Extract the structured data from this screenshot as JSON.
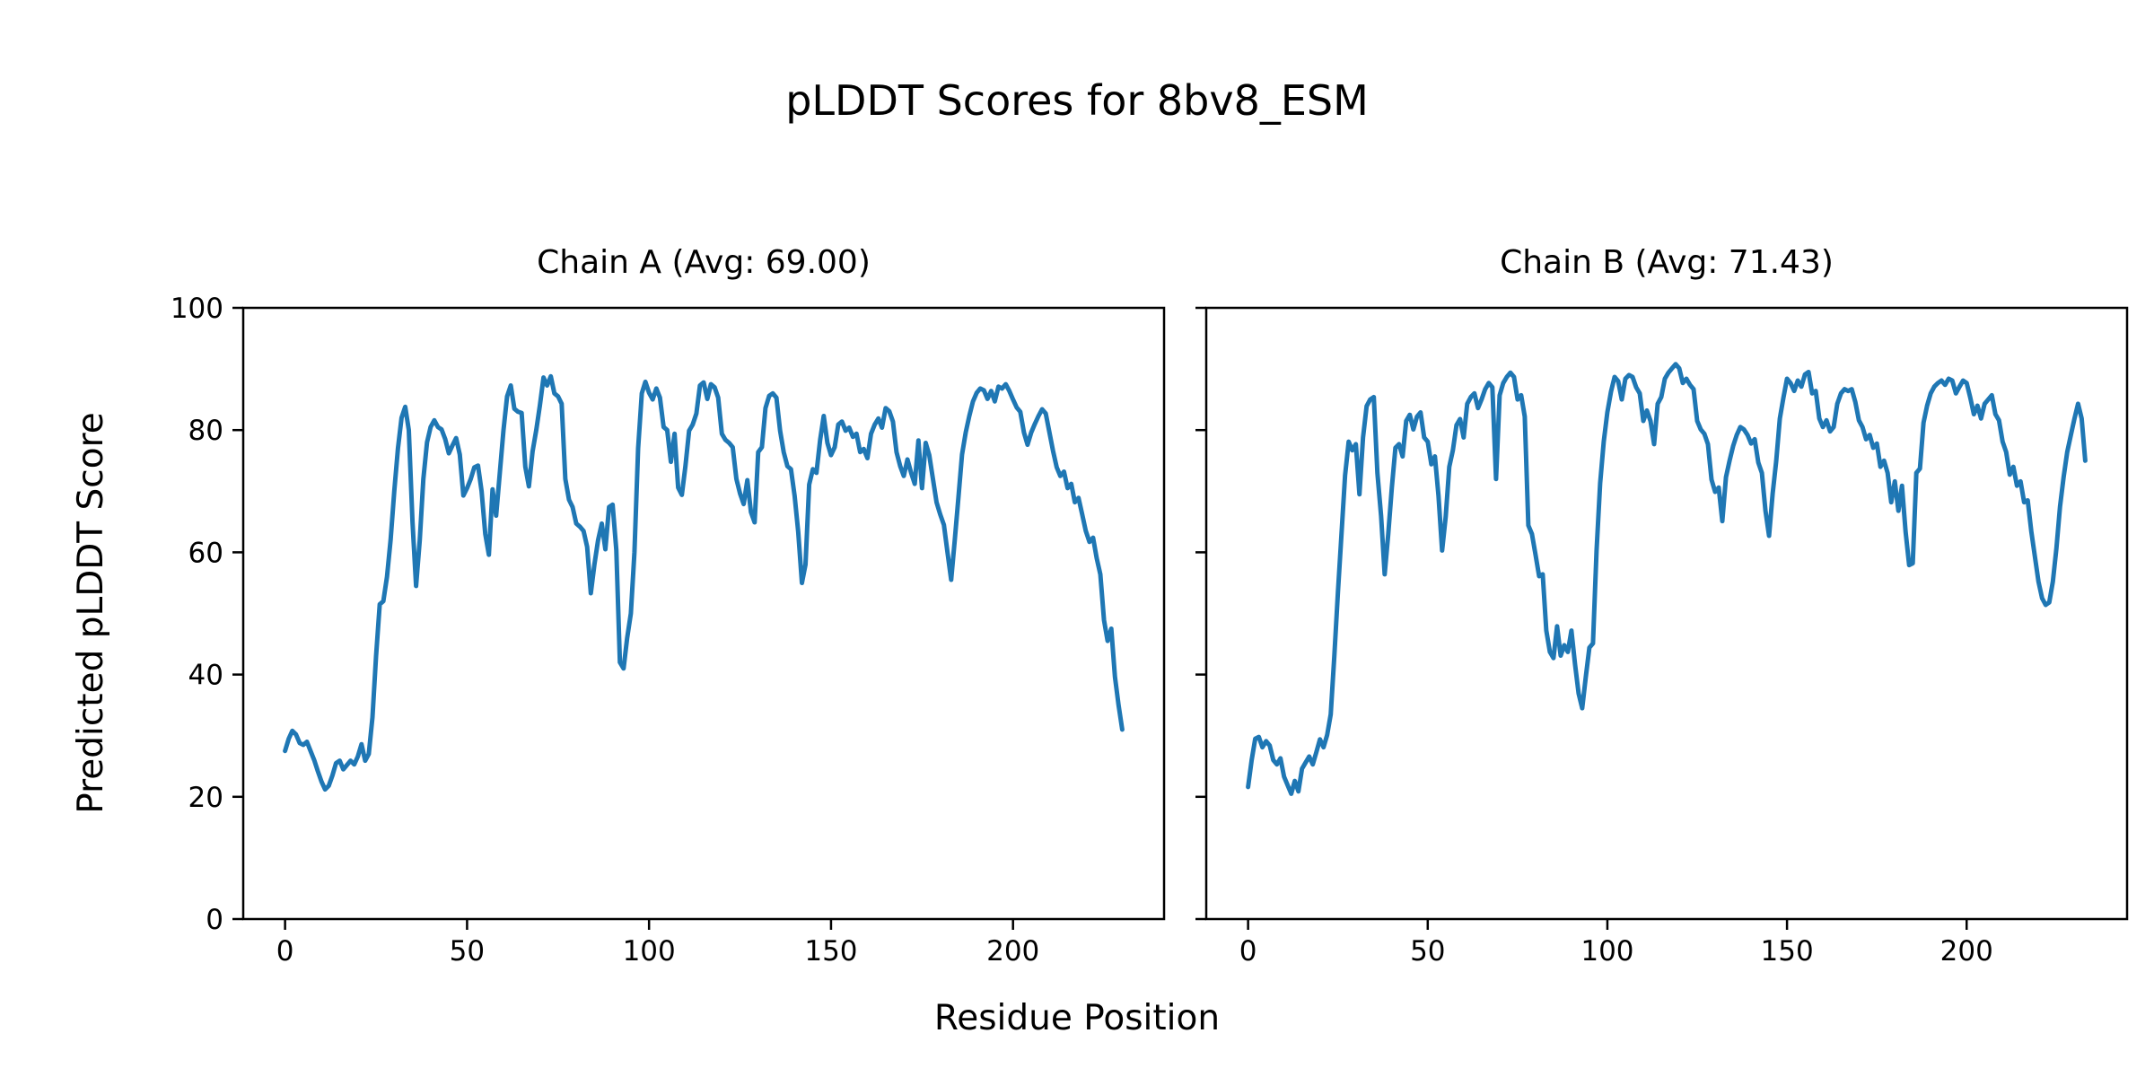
{
  "chart_data": {
    "type": "line",
    "suptitle": "pLDDT Scores for 8bv8_ESM",
    "xlabel": "Residue Position",
    "ylabel": "Predicted pLDDT Score",
    "line_color": "#1f77b4",
    "axis_color": "#000000",
    "text_color": "#000000",
    "background_color": "#ffffff",
    "ylim": [
      0,
      100
    ],
    "yticks": [
      0,
      20,
      40,
      60,
      80,
      100
    ],
    "xticks": [
      0,
      50,
      100,
      150,
      200
    ],
    "grid": false,
    "legend": "none",
    "subplots": [
      {
        "title": "Chain A (Avg: 69.00)",
        "avg": 69.0,
        "x_start": 0,
        "values": [
          27.5,
          29.5,
          30.8,
          30.2,
          28.8,
          28.5,
          29,
          27.5,
          26,
          24.2,
          22.5,
          21.2,
          21.8,
          23.5,
          25.5,
          25.9,
          24.5,
          25.2,
          25.9,
          25.3,
          26.6,
          28.6,
          25.9,
          27,
          33,
          43,
          51.5,
          52,
          56,
          62,
          70,
          77,
          82,
          83.8,
          80,
          65,
          54.5,
          62,
          72,
          78,
          80.5,
          81.6,
          80.5,
          80.1,
          78.5,
          76.2,
          77.5,
          78.7,
          76,
          69.3,
          70.5,
          72,
          73.9,
          74.2,
          70,
          63,
          59.6,
          70.3,
          66,
          73,
          80,
          85.5,
          87.3,
          83.5,
          83,
          82.8,
          74,
          70.8,
          76.5,
          80,
          84,
          88.6,
          87.3,
          88.8,
          86,
          85.5,
          84.3,
          72,
          68.6,
          67.4,
          64.7,
          64.2,
          63.5,
          60.9,
          53.3,
          58,
          62,
          64.7,
          60.5,
          67.4,
          67.8,
          60.4,
          42,
          41,
          46,
          50,
          60,
          77,
          86,
          87.9,
          86.1,
          85,
          86.8,
          85.3,
          80.5,
          80,
          74.8,
          79.4,
          70.6,
          69.4,
          74.1,
          79.9,
          80.9,
          82.7,
          87.3,
          87.8,
          85.1,
          87.5,
          87,
          85.3,
          79.4,
          78.4,
          77.9,
          77.2,
          72,
          69.6,
          67.9,
          71.8,
          66.6,
          64.9,
          76.4,
          77.2,
          83.6,
          85.6,
          86,
          85.3,
          79.9,
          76.4,
          74.1,
          73.6,
          69.2,
          63.3,
          55,
          58,
          71.1,
          73.6,
          73,
          78.4,
          82.3,
          77.9,
          75.9,
          77.2,
          80.9,
          81.4,
          79.9,
          80.4,
          78.9,
          79.4,
          76.4,
          76.9,
          75.4,
          79.4,
          80.9,
          81.9,
          80.4,
          83.6,
          83.1,
          81.4,
          76.4,
          74.1,
          72.5,
          75.2,
          73,
          71.2,
          78.3,
          70.5,
          77.9,
          75.9,
          72,
          68.2,
          66.2,
          64.5,
          60,
          55.5,
          62,
          69,
          76,
          79.6,
          82.3,
          84.7,
          86.1,
          86.8,
          86.5,
          85.1,
          86.4,
          84.7,
          87.1,
          86.8,
          87.5,
          86.4,
          85,
          83.7,
          83,
          79.6,
          77.6,
          79.6,
          81,
          82.3,
          83.4,
          82.7,
          79.6,
          76.6,
          73.9,
          72.5,
          73.2,
          70.5,
          71.2,
          68.2,
          68.9,
          66.2,
          63.5,
          61.7,
          62.4,
          59,
          56.4,
          48.9,
          45.5,
          47.5,
          39.6,
          35,
          31
        ]
      },
      {
        "title": "Chain B (Avg: 71.43)",
        "avg": 71.43,
        "x_start": 0,
        "values": [
          21.6,
          26,
          29.5,
          29.8,
          28.1,
          29.1,
          28.4,
          26,
          25.3,
          26.3,
          23.3,
          21.9,
          20.5,
          22.6,
          20.9,
          24.6,
          25.6,
          26.6,
          25.3,
          27.3,
          29.4,
          28.1,
          30.1,
          33.5,
          43,
          53.4,
          63,
          72.6,
          78.1,
          76.7,
          77.7,
          69.5,
          78.8,
          83.9,
          85,
          85.4,
          73,
          66,
          56.4,
          63,
          70.6,
          77.1,
          77.7,
          75.7,
          81.5,
          82.5,
          80.1,
          82.2,
          82.9,
          78.8,
          78.1,
          74.4,
          75.7,
          69.2,
          60.3,
          65.8,
          74,
          76.7,
          80.8,
          81.8,
          78.8,
          84.3,
          85.4,
          86,
          83.6,
          85,
          86.7,
          87.7,
          87,
          72,
          85.7,
          87.7,
          88.7,
          89.4,
          88.7,
          85,
          85.7,
          82.2,
          64.4,
          63,
          59.6,
          56.1,
          56.4,
          47.2,
          43.7,
          42.7,
          47.9,
          43.1,
          44.8,
          43.7,
          47.2,
          41.7,
          36.9,
          34.5,
          39.6,
          44.4,
          45.1,
          60.3,
          71.3,
          78.1,
          82.9,
          86.3,
          88.7,
          88,
          85,
          88.4,
          89,
          88.7,
          87,
          86,
          81.5,
          83.2,
          81.5,
          77.7,
          84.3,
          85.4,
          88.4,
          89.4,
          90.1,
          90.8,
          90.1,
          87.7,
          88.4,
          87.4,
          86.7,
          81.5,
          80.1,
          79.4,
          77.7,
          71.9,
          69.9,
          70.6,
          65.1,
          72.3,
          75,
          77.4,
          79.2,
          80.5,
          80.1,
          79.2,
          77.8,
          78.5,
          74.7,
          73,
          66.8,
          62.7,
          69.6,
          75,
          81.9,
          85.3,
          88.4,
          87.7,
          86.4,
          88.1,
          87.1,
          89.1,
          89.5,
          86,
          86.4,
          81.9,
          80.5,
          81.6,
          79.8,
          80.5,
          84.3,
          86,
          86.7,
          86.4,
          86.7,
          84.6,
          81.6,
          80.5,
          78.5,
          79.2,
          77.1,
          77.8,
          74,
          75,
          73,
          68.2,
          71.6,
          66.8,
          70.9,
          63.4,
          57.9,
          58.2,
          73,
          73.7,
          81.2,
          84,
          86,
          87.1,
          87.7,
          88.1,
          87.4,
          88.4,
          88.1,
          86,
          87.1,
          88.1,
          87.7,
          85.3,
          82.6,
          84,
          81.9,
          84.3,
          85,
          85.7,
          82.6,
          81.6,
          78.1,
          76.4,
          72.7,
          74,
          70.9,
          71.6,
          68.2,
          68.5,
          63.4,
          59.3,
          55.2,
          52.5,
          51.4,
          51.8,
          55.2,
          60.7,
          67.5,
          72.3,
          76.4,
          79.2,
          81.9,
          84.3,
          81.9,
          75
        ]
      }
    ]
  }
}
